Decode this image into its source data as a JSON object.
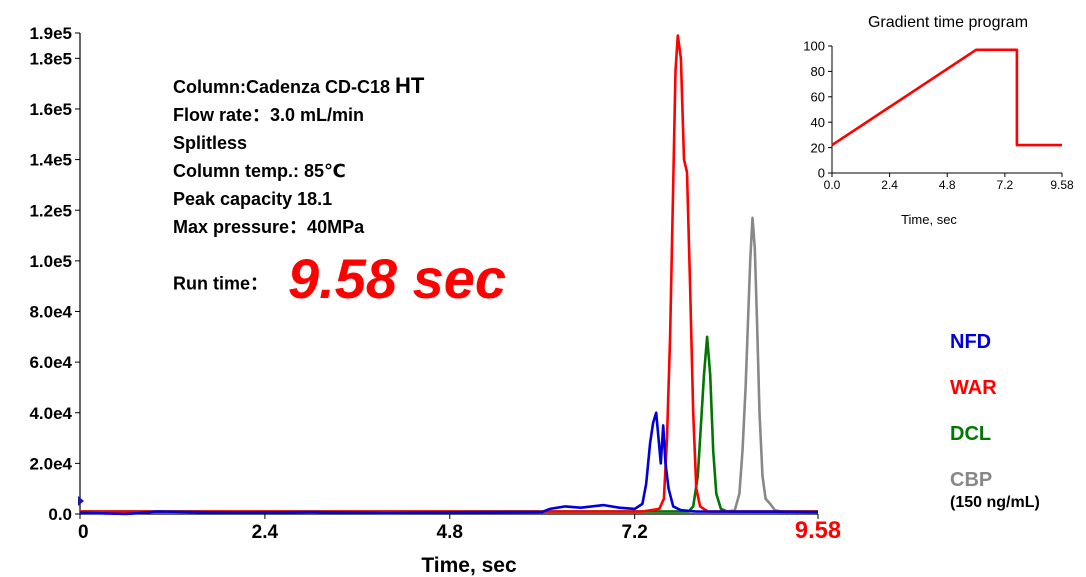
{
  "info": {
    "column_prefix": "Column:Cadenza CD-C18",
    "column_suffix": "HT",
    "flow_rate": "Flow rate：3.0 mL/min",
    "splitless": "Splitless",
    "column_temp": "Column temp.: 85℃",
    "peak_capacity": "Peak capacity 18.1",
    "max_pressure": "Max pressure：40MPa",
    "run_time_label": "Run time：",
    "run_time_value": "9.58 sec"
  },
  "legend": {
    "items": [
      {
        "label": "NFD",
        "color": "#0000dd"
      },
      {
        "label": "WAR",
        "color": "#ff0000"
      },
      {
        "label": "DCL",
        "color": "#007700"
      },
      {
        "label": "CBP",
        "color": "#888888"
      }
    ],
    "note": "(150 ng/mL)"
  },
  "chart_data": [
    {
      "type": "line",
      "title": "",
      "xlabel": "Time, sec",
      "ylabel": "",
      "xlim": [
        0,
        9.58
      ],
      "ylim": [
        0,
        190000
      ],
      "x_ticks": [
        {
          "value": 0,
          "label": "0"
        },
        {
          "value": 2.4,
          "label": "2.4"
        },
        {
          "value": 4.8,
          "label": "4.8"
        },
        {
          "value": 7.2,
          "label": "7.2"
        },
        {
          "value": 9.58,
          "label": "9.58",
          "color": "#ff0000"
        }
      ],
      "y_ticks": [
        {
          "value": 0,
          "label": "0.0"
        },
        {
          "value": 20000,
          "label": "2.0e4"
        },
        {
          "value": 40000,
          "label": "4.0e4"
        },
        {
          "value": 60000,
          "label": "6.0e4"
        },
        {
          "value": 80000,
          "label": "8.0e4"
        },
        {
          "value": 100000,
          "label": "1.0e5"
        },
        {
          "value": 120000,
          "label": "1.2e5"
        },
        {
          "value": 140000,
          "label": "1.4e5"
        },
        {
          "value": 160000,
          "label": "1.6e5"
        },
        {
          "value": 180000,
          "label": "1.8e5"
        },
        {
          "value": 190000,
          "label": "1.9e5"
        }
      ],
      "series": [
        {
          "name": "CBP",
          "color": "#888888",
          "points": [
            [
              0,
              1000
            ],
            [
              7.0,
              1000
            ],
            [
              8.4,
              1000
            ],
            [
              8.5,
              1500
            ],
            [
              8.56,
              8000
            ],
            [
              8.6,
              25000
            ],
            [
              8.64,
              50000
            ],
            [
              8.67,
              75000
            ],
            [
              8.7,
              100000
            ],
            [
              8.73,
              117000
            ],
            [
              8.76,
              105000
            ],
            [
              8.79,
              75000
            ],
            [
              8.82,
              40000
            ],
            [
              8.86,
              15000
            ],
            [
              8.9,
              6000
            ],
            [
              8.96,
              4000
            ],
            [
              9.02,
              1500
            ],
            [
              9.1,
              1000
            ],
            [
              9.58,
              1000
            ]
          ]
        },
        {
          "name": "DCL",
          "color": "#007700",
          "points": [
            [
              0,
              1000
            ],
            [
              7.4,
              1000
            ],
            [
              7.9,
              1000
            ],
            [
              7.96,
              3000
            ],
            [
              8.02,
              15000
            ],
            [
              8.06,
              35000
            ],
            [
              8.1,
              55000
            ],
            [
              8.14,
              70000
            ],
            [
              8.18,
              55000
            ],
            [
              8.22,
              25000
            ],
            [
              8.26,
              8000
            ],
            [
              8.32,
              2000
            ],
            [
              8.4,
              1000
            ],
            [
              9.58,
              1000
            ]
          ]
        },
        {
          "name": "WAR",
          "color": "#ff0000",
          "points": [
            [
              0,
              1000
            ],
            [
              7.3,
              1000
            ],
            [
              7.52,
              2000
            ],
            [
              7.58,
              6000
            ],
            [
              7.62,
              30000
            ],
            [
              7.66,
              70000
            ],
            [
              7.7,
              130000
            ],
            [
              7.73,
              175000
            ],
            [
              7.76,
              189000
            ],
            [
              7.8,
              180000
            ],
            [
              7.84,
              140000
            ],
            [
              7.88,
              135000
            ],
            [
              7.92,
              90000
            ],
            [
              7.96,
              40000
            ],
            [
              8.0,
              10000
            ],
            [
              8.05,
              3000
            ],
            [
              8.15,
              1000
            ],
            [
              9.58,
              1000
            ]
          ]
        },
        {
          "name": "NFD",
          "color": "#0000dd",
          "points": [
            [
              0,
              500
            ],
            [
              0.6,
              0
            ],
            [
              1.0,
              1000
            ],
            [
              2.0,
              500
            ],
            [
              3.0,
              800
            ],
            [
              4.0,
              400
            ],
            [
              5.0,
              700
            ],
            [
              6.0,
              800
            ],
            [
              6.1,
              2000
            ],
            [
              6.3,
              3000
            ],
            [
              6.5,
              2500
            ],
            [
              6.8,
              3500
            ],
            [
              7.0,
              2500
            ],
            [
              7.2,
              2000
            ],
            [
              7.3,
              4000
            ],
            [
              7.35,
              12000
            ],
            [
              7.4,
              28000
            ],
            [
              7.44,
              36000
            ],
            [
              7.48,
              40000
            ],
            [
              7.51,
              30000
            ],
            [
              7.54,
              20000
            ],
            [
              7.57,
              35000
            ],
            [
              7.6,
              20000
            ],
            [
              7.64,
              10000
            ],
            [
              7.7,
              3000
            ],
            [
              7.8,
              1500
            ],
            [
              8.0,
              1000
            ],
            [
              9.0,
              900
            ],
            [
              9.58,
              800
            ]
          ]
        }
      ]
    },
    {
      "type": "line",
      "title": "Gradient time program",
      "xlabel": "Time, sec",
      "ylabel": "",
      "xlim": [
        0,
        9.58
      ],
      "ylim": [
        0,
        100
      ],
      "x_ticks": [
        {
          "value": 0,
          "label": "0.0"
        },
        {
          "value": 2.4,
          "label": "2.4"
        },
        {
          "value": 4.8,
          "label": "4.8"
        },
        {
          "value": 7.2,
          "label": "7.2"
        },
        {
          "value": 9.58,
          "label": "9.58"
        }
      ],
      "y_ticks": [
        {
          "value": 0,
          "label": "0"
        },
        {
          "value": 20,
          "label": "20"
        },
        {
          "value": 40,
          "label": "40"
        },
        {
          "value": 60,
          "label": "60"
        },
        {
          "value": 80,
          "label": "80"
        },
        {
          "value": 100,
          "label": "100"
        }
      ],
      "series": [
        {
          "color": "#ff0000",
          "points": [
            [
              0,
              22
            ],
            [
              6.0,
              97
            ],
            [
              7.7,
              97
            ],
            [
              7.7,
              22
            ],
            [
              9.58,
              22
            ]
          ]
        }
      ]
    }
  ]
}
